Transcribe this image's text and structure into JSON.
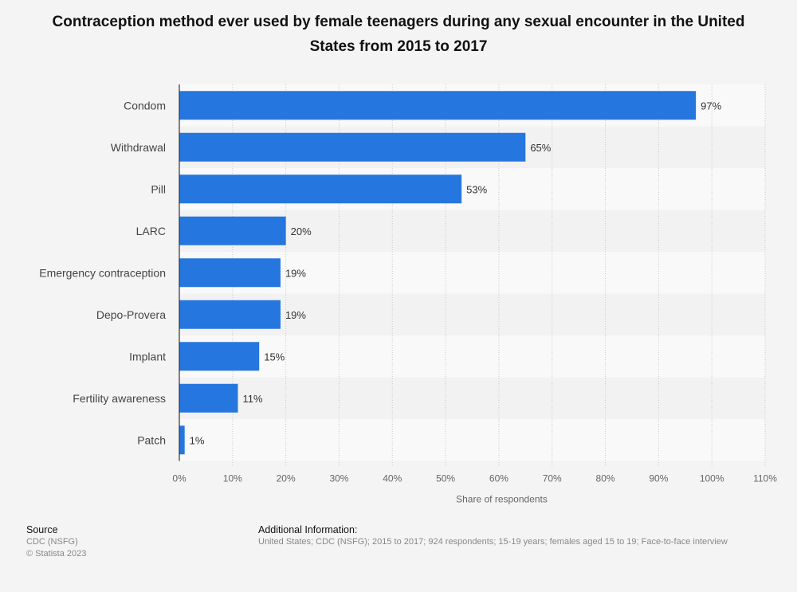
{
  "title": "Contraception method ever used by female teenagers during any sexual encounter in the United States from 2015 to 2017",
  "footer": {
    "source_heading": "Source",
    "source_line1": "CDC (NSFG)",
    "source_line2": "© Statista 2023",
    "info_heading": "Additional Information:",
    "info_text": "United States; CDC (NSFG); 2015 to 2017; 924 respondents; 15-19 years; females aged 15 to 19; Face-to-face interview"
  },
  "colors": {
    "bar": "#2676df",
    "band_light": "#f9f9f9",
    "band_dark": "#f2f2f2",
    "grid": "#c8c8c8"
  },
  "chart_data": {
    "type": "bar",
    "orientation": "horizontal",
    "categories": [
      "Condom",
      "Withdrawal",
      "Pill",
      "LARC",
      "Emergency contraception",
      "Depo-Provera",
      "Implant",
      "Fertility awareness",
      "Patch"
    ],
    "values": [
      97,
      65,
      53,
      20,
      19,
      19,
      15,
      11,
      1
    ],
    "value_labels": [
      "97%",
      "65%",
      "53%",
      "20%",
      "19%",
      "19%",
      "15%",
      "11%",
      "1%"
    ],
    "xlabel": "Share of respondents",
    "ylabel": "",
    "xlim": [
      0,
      110
    ],
    "xticks": [
      "0%",
      "10%",
      "20%",
      "30%",
      "40%",
      "50%",
      "60%",
      "70%",
      "80%",
      "90%",
      "100%",
      "110%"
    ],
    "grid": true
  }
}
